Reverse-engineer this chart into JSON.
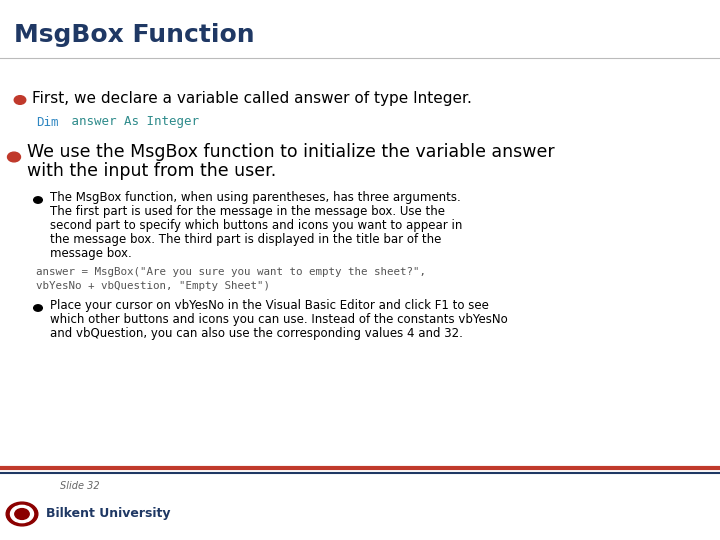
{
  "title": "MsgBox Function",
  "title_color": "#1F3864",
  "bg_color": "#FFFFFF",
  "header_line_color": "#BBBBBB",
  "footer_line_color1": "#C0392B",
  "footer_line_color2": "#1F3864",
  "bullet_color": "#C0392B",
  "text_color": "#000000",
  "code_color_dim": "#2E86C1",
  "code_color_rest": "#2E8B8B",
  "slide_label": "Slide 32",
  "university": "Bilkent University"
}
